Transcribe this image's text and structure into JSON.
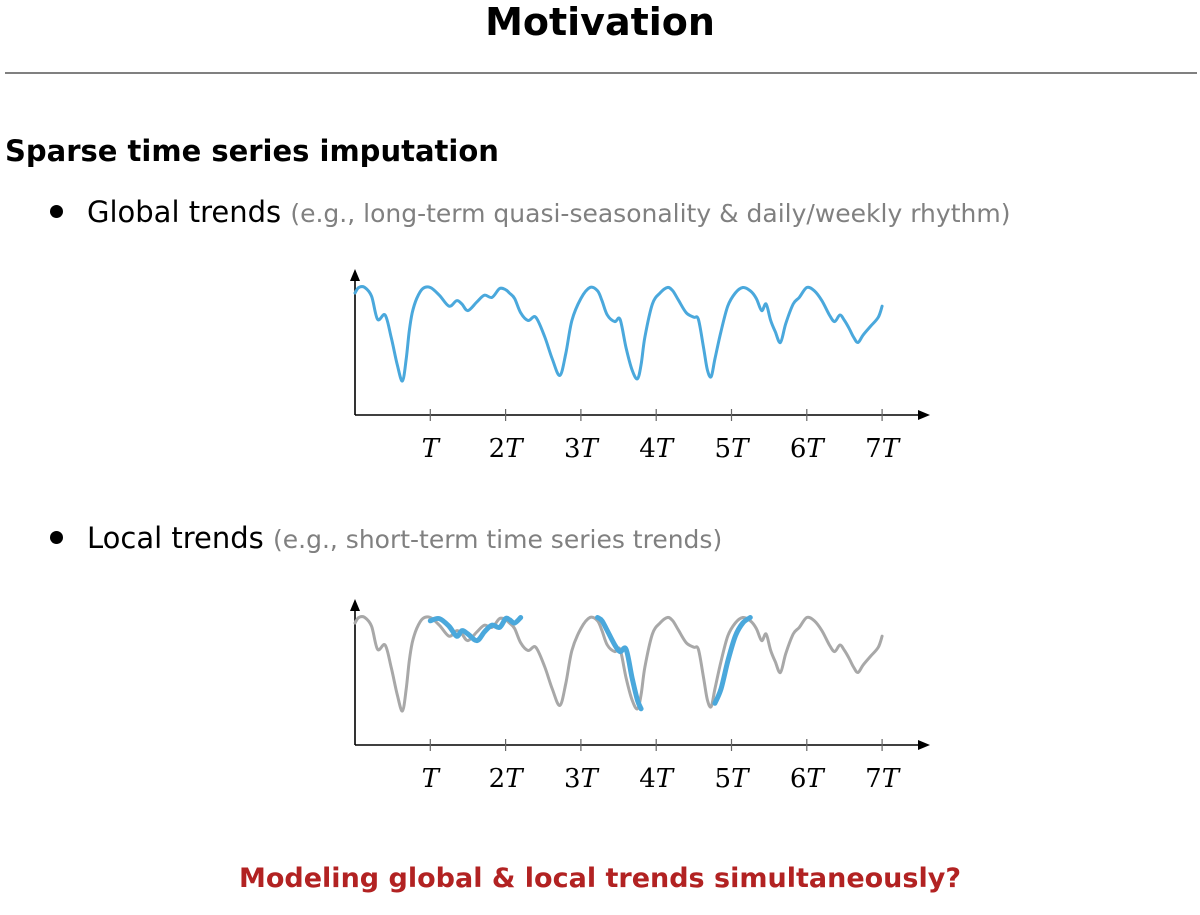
{
  "slide": {
    "title": "Motivation",
    "section_heading": "Sparse time series imputation",
    "bullets": [
      {
        "label": "Global trends",
        "note": "(e.g., long-term quasi-seasonality & daily/weekly rhythm)"
      },
      {
        "label": "Local trends",
        "note": "(e.g., short-term time series trends)"
      }
    ],
    "question": "Modeling global & local trends simultaneously?"
  },
  "colors": {
    "series": "#4aa8dc",
    "muted_series": "#a8a8a8",
    "question": "#b22222",
    "note": "#808080"
  },
  "chart_data": [
    {
      "type": "line",
      "title": "",
      "xlabel": "",
      "ylabel": "",
      "xlim": [
        0,
        7.6
      ],
      "ylim": [
        0,
        1.2
      ],
      "x_ticks": [
        1,
        2,
        3,
        4,
        5,
        6,
        7
      ],
      "x_tick_labels": [
        "T",
        "2T",
        "3T",
        "4T",
        "5T",
        "6T",
        "7T"
      ],
      "grid": false,
      "series": [
        {
          "color": "#4aa8dc",
          "x": [
            0,
            0.05,
            0.13,
            0.22,
            0.3,
            0.4,
            0.48,
            0.56,
            0.63,
            0.68,
            0.72,
            0.76,
            0.82,
            0.9,
            1.0,
            1.12,
            1.25,
            1.35,
            1.42,
            1.5,
            1.62,
            1.72,
            1.82,
            1.92,
            2.0,
            2.05,
            2.12,
            2.2,
            2.3,
            2.4,
            2.52,
            2.62,
            2.72,
            2.8,
            2.88,
            3.0,
            3.12,
            3.22,
            3.28,
            3.35,
            3.45,
            3.52,
            3.6,
            3.68,
            3.75,
            3.8,
            3.85,
            3.95,
            4.05,
            4.15,
            4.22,
            4.3,
            4.4,
            4.5,
            4.56,
            4.63,
            4.68,
            4.73,
            4.78,
            4.86,
            4.95,
            5.05,
            5.15,
            5.25,
            5.33,
            5.4,
            5.46,
            5.52,
            5.58,
            5.65,
            5.72,
            5.82,
            5.9,
            6.0,
            6.1,
            6.2,
            6.3,
            6.37,
            6.44,
            6.5,
            6.56,
            6.62,
            6.68,
            6.75,
            6.85,
            6.95,
            7.0
          ],
          "y": [
            1.0,
            1.05,
            1.05,
            0.97,
            0.76,
            0.8,
            0.6,
            0.35,
            0.2,
            0.4,
            0.65,
            0.82,
            0.95,
            1.04,
            1.05,
            0.98,
            0.88,
            0.93,
            0.9,
            0.84,
            0.92,
            0.98,
            0.96,
            1.04,
            1.03,
            1.0,
            0.95,
            0.82,
            0.75,
            0.78,
            0.6,
            0.4,
            0.25,
            0.45,
            0.75,
            0.95,
            1.05,
            1.02,
            0.93,
            0.8,
            0.74,
            0.76,
            0.5,
            0.3,
            0.22,
            0.35,
            0.6,
            0.9,
            1.0,
            1.05,
            1.02,
            0.93,
            0.82,
            0.78,
            0.76,
            0.5,
            0.3,
            0.24,
            0.4,
            0.65,
            0.88,
            1.0,
            1.05,
            1.02,
            0.95,
            0.84,
            0.9,
            0.75,
            0.65,
            0.55,
            0.72,
            0.9,
            0.96,
            1.05,
            1.02,
            0.93,
            0.8,
            0.74,
            0.8,
            0.75,
            0.68,
            0.6,
            0.55,
            0.62,
            0.7,
            0.78,
            0.88
          ]
        }
      ]
    },
    {
      "type": "line",
      "title": "",
      "xlabel": "",
      "ylabel": "",
      "xlim": [
        0,
        7.6
      ],
      "ylim": [
        0,
        1.2
      ],
      "x_ticks": [
        1,
        2,
        3,
        4,
        5,
        6,
        7
      ],
      "x_tick_labels": [
        "T",
        "2T",
        "3T",
        "4T",
        "5T",
        "6T",
        "7T"
      ],
      "grid": false,
      "series": [
        {
          "color": "#a8a8a8",
          "x": [
            0,
            0.05,
            0.13,
            0.22,
            0.3,
            0.4,
            0.48,
            0.56,
            0.63,
            0.68,
            0.72,
            0.76,
            0.82,
            0.9,
            1.0,
            1.12,
            1.25,
            1.35,
            1.42,
            1.5,
            1.62,
            1.72,
            1.82,
            1.92,
            2.0,
            2.05,
            2.12,
            2.2,
            2.3,
            2.4,
            2.52,
            2.62,
            2.72,
            2.8,
            2.88,
            3.0,
            3.12,
            3.22,
            3.28,
            3.35,
            3.45,
            3.52,
            3.6,
            3.68,
            3.75,
            3.8,
            3.85,
            3.95,
            4.05,
            4.15,
            4.22,
            4.3,
            4.4,
            4.5,
            4.56,
            4.63,
            4.68,
            4.73,
            4.78,
            4.86,
            4.95,
            5.05,
            5.15,
            5.25,
            5.33,
            5.4,
            5.46,
            5.52,
            5.58,
            5.65,
            5.72,
            5.82,
            5.9,
            6.0,
            6.1,
            6.2,
            6.3,
            6.37,
            6.44,
            6.5,
            6.56,
            6.62,
            6.68,
            6.75,
            6.85,
            6.95,
            7.0
          ],
          "y": [
            1.0,
            1.05,
            1.05,
            0.97,
            0.76,
            0.8,
            0.6,
            0.35,
            0.2,
            0.4,
            0.65,
            0.82,
            0.95,
            1.04,
            1.05,
            0.98,
            0.88,
            0.93,
            0.9,
            0.84,
            0.92,
            0.98,
            0.96,
            1.04,
            1.03,
            1.0,
            0.95,
            0.82,
            0.75,
            0.78,
            0.6,
            0.4,
            0.25,
            0.45,
            0.75,
            0.95,
            1.05,
            1.02,
            0.93,
            0.8,
            0.74,
            0.76,
            0.5,
            0.3,
            0.22,
            0.35,
            0.6,
            0.9,
            1.0,
            1.05,
            1.02,
            0.93,
            0.82,
            0.78,
            0.76,
            0.5,
            0.3,
            0.24,
            0.4,
            0.65,
            0.88,
            1.0,
            1.05,
            1.02,
            0.95,
            0.84,
            0.9,
            0.75,
            0.65,
            0.55,
            0.72,
            0.9,
            0.96,
            1.05,
            1.02,
            0.93,
            0.8,
            0.74,
            0.8,
            0.75,
            0.68,
            0.6,
            0.55,
            0.62,
            0.7,
            0.78,
            0.88
          ]
        },
        {
          "color": "#4aa8dc",
          "emphasis": true,
          "x": [
            1.0,
            1.12,
            1.25,
            1.35,
            1.42,
            1.5,
            1.62,
            1.72,
            1.82,
            1.92,
            2.0,
            2.05,
            2.12,
            2.2
          ],
          "y": [
            1.02,
            1.04,
            0.97,
            0.88,
            0.93,
            0.9,
            0.84,
            0.92,
            0.98,
            0.96,
            1.04,
            1.03,
            1.0,
            1.05
          ]
        },
        {
          "color": "#4aa8dc",
          "emphasis": true,
          "x": [
            3.22,
            3.28,
            3.35,
            3.45,
            3.52,
            3.6,
            3.68,
            3.75,
            3.8
          ],
          "y": [
            1.05,
            1.02,
            0.93,
            0.8,
            0.74,
            0.76,
            0.5,
            0.3,
            0.22
          ]
        },
        {
          "color": "#4aa8dc",
          "emphasis": true,
          "x": [
            4.78,
            4.86,
            4.95,
            5.05,
            5.15,
            5.25
          ],
          "y": [
            0.27,
            0.4,
            0.65,
            0.88,
            1.0,
            1.05
          ]
        }
      ]
    }
  ]
}
